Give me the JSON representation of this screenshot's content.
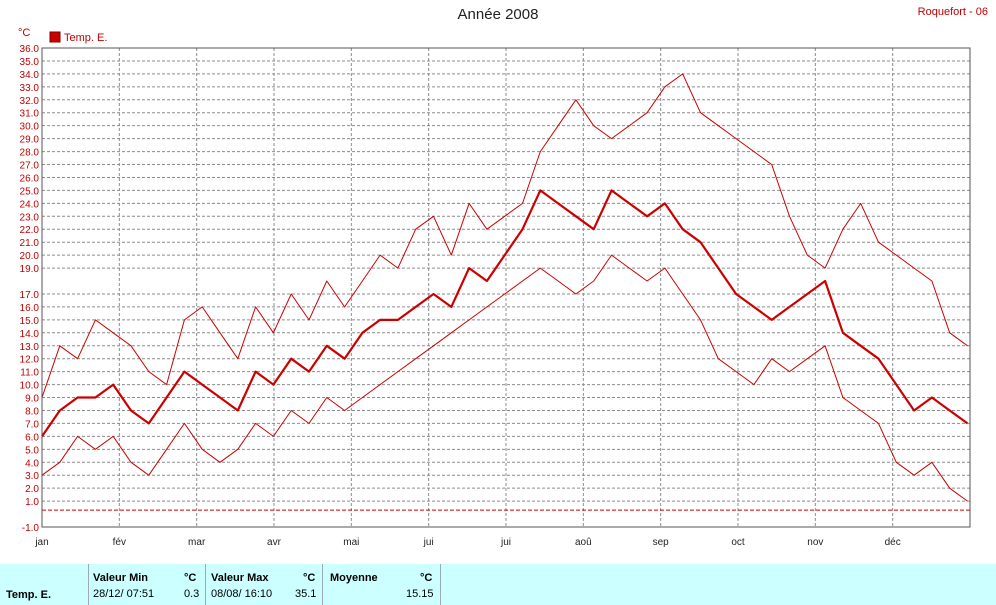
{
  "title": "Année 2008",
  "station": "Roquefort - 06",
  "colors": {
    "series": "#cc0000",
    "axis_text": "#c00000",
    "grid": "#8c8c8c",
    "footer_bg": "#ccffff"
  },
  "chart_data": {
    "type": "line",
    "ylabel": "°C",
    "ylim": [
      -1.0,
      36.0
    ],
    "yticks": [
      "36.0",
      "35.0",
      "34.0",
      "33.0",
      "32.0",
      "31.0",
      "30.0",
      "29.0",
      "28.0",
      "27.0",
      "26.0",
      "25.0",
      "24.0",
      "23.0",
      "22.0",
      "21.0",
      "20.0",
      "19.0",
      "17.0",
      "16.0",
      "15.0",
      "14.0",
      "13.0",
      "12.0",
      "11.0",
      "10.0",
      "9.0",
      "8.0",
      "7.0",
      "6.0",
      "5.0",
      "4.0",
      "3.0",
      "2.0",
      "1.0",
      "-1.0"
    ],
    "ytick_values": [
      36,
      35,
      34,
      33,
      32,
      31,
      30,
      29,
      28,
      27,
      26,
      25,
      24,
      23,
      22,
      21,
      20,
      19,
      17,
      16,
      15,
      14,
      13,
      12,
      11,
      10,
      9,
      8,
      7,
      6,
      5,
      4,
      3,
      2,
      1,
      -1
    ],
    "months": [
      "jan",
      "fév",
      "mar",
      "avr",
      "mai",
      "jui",
      "jui",
      "aoû",
      "sep",
      "oct",
      "nov",
      "déc"
    ],
    "legend": [
      "Temp. E."
    ],
    "reference_line": 0.3,
    "x": [
      1,
      8,
      15,
      22,
      29,
      36,
      43,
      50,
      57,
      64,
      71,
      78,
      85,
      92,
      99,
      106,
      113,
      120,
      127,
      134,
      141,
      148,
      155,
      162,
      169,
      176,
      183,
      190,
      197,
      204,
      211,
      218,
      225,
      232,
      239,
      246,
      253,
      260,
      267,
      274,
      281,
      288,
      295,
      302,
      309,
      316,
      323,
      330,
      337,
      344,
      351,
      358,
      365
    ],
    "series": [
      {
        "name": "Temp. E.",
        "kind": "max",
        "values": [
          9,
          13,
          12,
          15,
          14,
          13,
          11,
          10,
          15,
          16,
          14,
          12,
          16,
          14,
          17,
          15,
          18,
          16,
          18,
          20,
          19,
          22,
          23,
          20,
          24,
          22,
          23,
          24,
          28,
          30,
          32,
          30,
          29,
          30,
          31,
          33,
          34,
          31,
          30,
          29,
          28,
          27,
          23,
          20,
          19,
          22,
          24,
          21,
          20,
          19,
          18,
          14,
          13
        ]
      },
      {
        "name": "Temp. E.",
        "kind": "mean",
        "values": [
          6,
          8,
          9,
          9,
          10,
          8,
          7,
          9,
          11,
          10,
          9,
          8,
          11,
          10,
          12,
          11,
          13,
          12,
          14,
          15,
          15,
          16,
          17,
          16,
          19,
          18,
          20,
          22,
          25,
          24,
          23,
          22,
          25,
          24,
          23,
          24,
          22,
          21,
          19,
          17,
          16,
          15,
          16,
          17,
          18,
          14,
          13,
          12,
          10,
          8,
          9,
          8,
          7
        ]
      },
      {
        "name": "Temp. E.",
        "kind": "min",
        "values": [
          3,
          4,
          6,
          5,
          6,
          4,
          3,
          5,
          7,
          5,
          4,
          5,
          7,
          6,
          8,
          7,
          9,
          8,
          9,
          10,
          11,
          12,
          13,
          14,
          15,
          16,
          17,
          18,
          19,
          18,
          17,
          18,
          20,
          19,
          18,
          19,
          17,
          15,
          12,
          11,
          10,
          12,
          11,
          12,
          13,
          9,
          8,
          7,
          4,
          3,
          4,
          2,
          1
        ]
      }
    ]
  },
  "footer": {
    "series_label": "Temp. E.",
    "min": {
      "label": "Valeur Min",
      "unit": "°C",
      "date": "28/12/  07:51",
      "value": "0.3"
    },
    "max": {
      "label": "Valeur Max",
      "unit": "°C",
      "date": "08/08/  16:10",
      "value": "35.1"
    },
    "mean": {
      "label": "Moyenne",
      "unit": "°C",
      "value": "15.15"
    }
  }
}
